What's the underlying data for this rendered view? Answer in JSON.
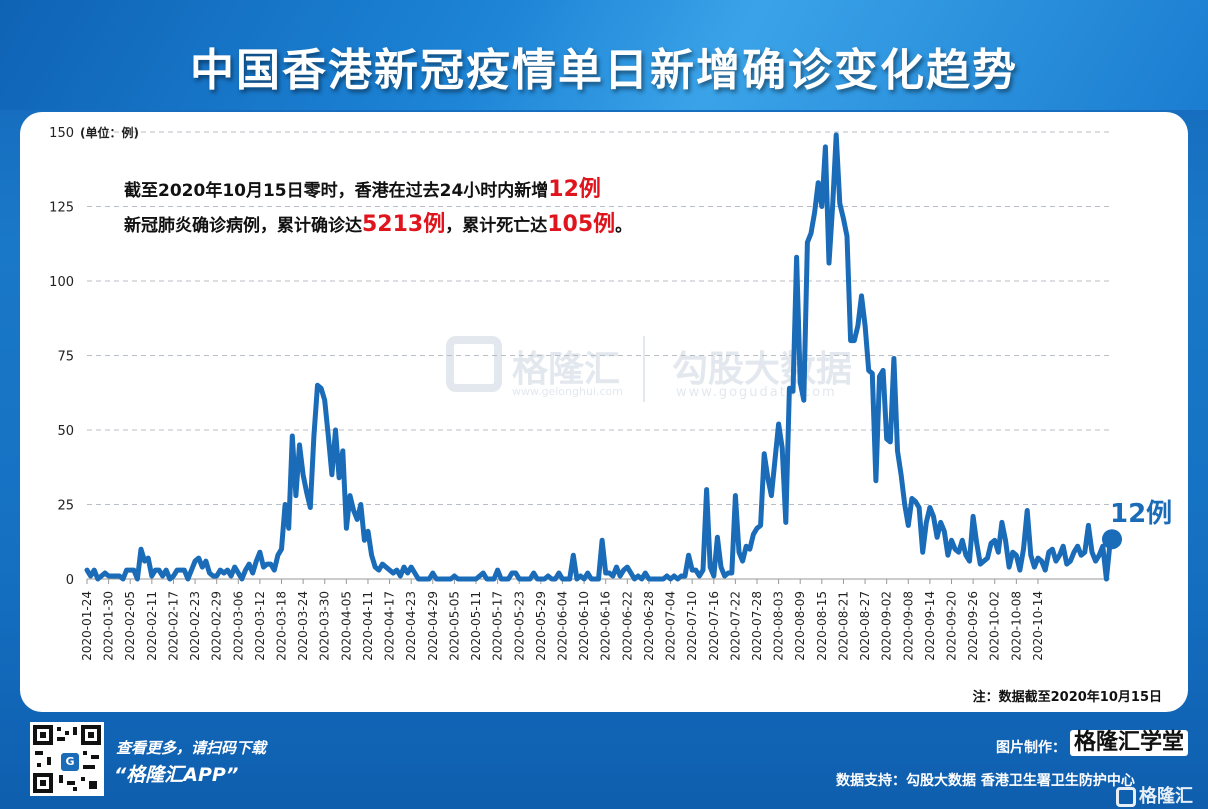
{
  "title": "中国香港新冠疫情单日新增确诊变化趋势",
  "unit_label": "(单位：例)",
  "annotation": {
    "line1_prefix": "截至2020年10月15日零时，香港在过去24小时内新增",
    "line1_value": "12例",
    "line2_prefix": "新冠肺炎确诊病例，累计确诊达",
    "line2_value1": "5213例",
    "line2_mid": "，累计死亡达",
    "line2_value2": "105例",
    "line2_suffix": "。"
  },
  "last_point_label": "12例",
  "note": "注：数据截至2020年10月15日",
  "watermarks": {
    "brand1": "格隆汇",
    "brand1_url": "www.gelonghui.com",
    "brand2": "勾股大数据",
    "brand2_url": "www.gogudata.com"
  },
  "footer": {
    "scan_text": "查看更多，请扫码下载",
    "app_text": "“格隆汇APP”",
    "qr_glyph": "G",
    "made_by_label": "图片制作：",
    "made_by_brand": "格隆汇学堂",
    "support": "数据支持：勾股大数据  香港卫生署卫生防护中心",
    "corner_brand": "格隆汇"
  },
  "colors": {
    "line": "#1a6bb8",
    "highlight": "#e0141c",
    "grid": "#b8bec6",
    "background": "#1570c2"
  },
  "chart_data": {
    "type": "line",
    "start_date": "2020-01-24",
    "end_date": "2020-10-14",
    "x_tick_labels": [
      "2020-01-24",
      "2020-01-30",
      "2020-02-05",
      "2020-02-11",
      "2020-02-17",
      "2020-02-23",
      "2020-02-29",
      "2020-03-06",
      "2020-03-12",
      "2020-03-18",
      "2020-03-24",
      "2020-03-30",
      "2020-04-05",
      "2020-04-11",
      "2020-04-17",
      "2020-04-23",
      "2020-04-29",
      "2020-05-05",
      "2020-05-11",
      "2020-05-17",
      "2020-05-23",
      "2020-05-29",
      "2020-06-04",
      "2020-06-10",
      "2020-06-16",
      "2020-06-22",
      "2020-06-28",
      "2020-07-04",
      "2020-07-10",
      "2020-07-16",
      "2020-07-22",
      "2020-07-28",
      "2020-08-03",
      "2020-08-09",
      "2020-08-15",
      "2020-08-21",
      "2020-08-27",
      "2020-09-02",
      "2020-09-08",
      "2020-09-14",
      "2020-09-20",
      "2020-09-26",
      "2020-10-02",
      "2020-10-08",
      "2020-10-14"
    ],
    "y_ticks": [
      0,
      25,
      50,
      75,
      100,
      125,
      150
    ],
    "ylim": [
      0,
      150
    ],
    "grid": "horizontal dashed",
    "series": [
      {
        "values": [
          3,
          1,
          3,
          0,
          1,
          2,
          1,
          1,
          1,
          1,
          0,
          3,
          3,
          3,
          0,
          10,
          6,
          7,
          1,
          3,
          3,
          1,
          3,
          0,
          1,
          3,
          3,
          3,
          0,
          3,
          6,
          7,
          4,
          6,
          2,
          1,
          1,
          3,
          2,
          3,
          1,
          4,
          2,
          0,
          3,
          5,
          2,
          6,
          9,
          4,
          5,
          5,
          3,
          8,
          10,
          25,
          17,
          48,
          28,
          45,
          35,
          29,
          24,
          48,
          65,
          64,
          60,
          48,
          35,
          50,
          34,
          43,
          17,
          28,
          23,
          20,
          25,
          13,
          16,
          8,
          4,
          3,
          5,
          4,
          3,
          2,
          3,
          1,
          4,
          2,
          4,
          2,
          0,
          0,
          0,
          0,
          2,
          0,
          0,
          0,
          0,
          0,
          1,
          0,
          0,
          0,
          0,
          0,
          0,
          1,
          2,
          0,
          0,
          0,
          3,
          0,
          0,
          0,
          2,
          2,
          0,
          0,
          0,
          0,
          2,
          0,
          0,
          0,
          1,
          0,
          0,
          2,
          0,
          0,
          0,
          8,
          0,
          1,
          0,
          2,
          0,
          0,
          0,
          13,
          2,
          2,
          1,
          4,
          1,
          3,
          4,
          2,
          0,
          1,
          0,
          2,
          0,
          0,
          0,
          0,
          0,
          1,
          0,
          1,
          0,
          1,
          1,
          8,
          3,
          3,
          1,
          3,
          30,
          4,
          1,
          14,
          4,
          1,
          2,
          2,
          28,
          9,
          6,
          11,
          10,
          15,
          17,
          18,
          42,
          34,
          28,
          40,
          52,
          44,
          19,
          64,
          63,
          108,
          66,
          60,
          113,
          116,
          123,
          133,
          125,
          145,
          106,
          125,
          149,
          126,
          121,
          115,
          80,
          80,
          85,
          95,
          85,
          70,
          69,
          33,
          68,
          70,
          47,
          46,
          74,
          43,
          35,
          25,
          18,
          27,
          26,
          24,
          9,
          19,
          24,
          21,
          14,
          19,
          16,
          8,
          13,
          10,
          9,
          13,
          8,
          6,
          21,
          12,
          5,
          6,
          7,
          12,
          13,
          9,
          19,
          13,
          4,
          9,
          8,
          3,
          10,
          23,
          8,
          4,
          7,
          6,
          3,
          9,
          10,
          6,
          8,
          11,
          5,
          6,
          9,
          11,
          8,
          9,
          18,
          9,
          6,
          8,
          11,
          0,
          12
        ]
      }
    ]
  }
}
